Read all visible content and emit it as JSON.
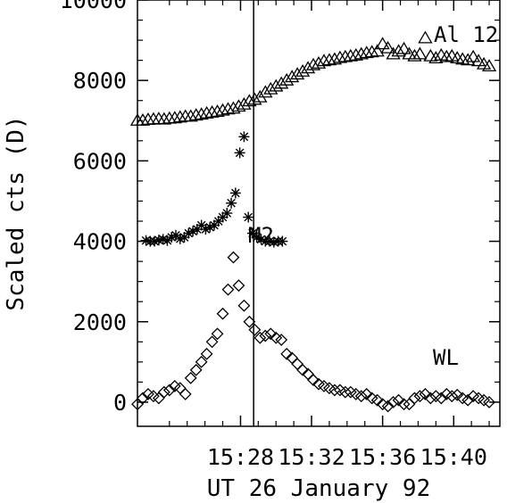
{
  "chart_data": {
    "type": "scatter",
    "xlabel": "UT 26 January 92",
    "ylabel": "Scaled cts (D)",
    "xlim": [
      15.37,
      15.71
    ],
    "ylim": [
      -600,
      10000
    ],
    "x_unit": "hours",
    "x_ticks": [
      {
        "value": 15.4667,
        "label": "15:28"
      },
      {
        "value": 15.5333,
        "label": "15:32"
      },
      {
        "value": 15.6,
        "label": "15:36"
      },
      {
        "value": 15.6667,
        "label": "15:40"
      }
    ],
    "y_ticks": [
      0,
      2000,
      4000,
      6000,
      8000,
      10000
    ],
    "vline_x": 15.479,
    "grid": false,
    "series": [
      {
        "name": "Al 12",
        "marker": "triangle",
        "x": [
          15.37,
          15.375,
          15.38,
          15.385,
          15.39,
          15.395,
          15.4,
          15.405,
          15.41,
          15.415,
          15.42,
          15.425,
          15.43,
          15.435,
          15.44,
          15.445,
          15.45,
          15.455,
          15.46,
          15.465,
          15.47,
          15.475,
          15.48,
          15.485,
          15.49,
          15.495,
          15.5,
          15.505,
          15.51,
          15.515,
          15.52,
          15.525,
          15.53,
          15.535,
          15.54,
          15.545,
          15.55,
          15.555,
          15.56,
          15.565,
          15.57,
          15.575,
          15.58,
          15.585,
          15.59,
          15.595,
          15.6,
          15.605,
          15.61,
          15.615,
          15.62,
          15.625,
          15.63,
          15.635,
          15.64,
          15.645,
          15.65,
          15.655,
          15.66,
          15.665,
          15.67,
          15.675,
          15.68,
          15.685,
          15.69,
          15.695,
          15.7
        ],
        "values": [
          7000,
          7000,
          7020,
          7030,
          7040,
          7030,
          7050,
          7060,
          7080,
          7100,
          7100,
          7130,
          7150,
          7180,
          7200,
          7220,
          7250,
          7280,
          7300,
          7350,
          7400,
          7480,
          7520,
          7580,
          7700,
          7780,
          7850,
          7920,
          8000,
          8080,
          8150,
          8220,
          8300,
          8380,
          8420,
          8480,
          8500,
          8520,
          8560,
          8580,
          8600,
          8620,
          8650,
          8680,
          8700,
          8720,
          8900,
          8800,
          8650,
          8720,
          8780,
          8650,
          8600,
          8650,
          9050,
          8600,
          8550,
          8620,
          8580,
          8600,
          8550,
          8520,
          8500,
          8580,
          8480,
          8400,
          8350
        ]
      },
      {
        "name": "M2",
        "marker": "asterisk",
        "x": [
          15.378,
          15.382,
          15.386,
          15.39,
          15.394,
          15.398,
          15.402,
          15.406,
          15.41,
          15.414,
          15.418,
          15.422,
          15.426,
          15.43,
          15.434,
          15.438,
          15.442,
          15.446,
          15.45,
          15.454,
          15.458,
          15.462,
          15.466,
          15.47,
          15.474,
          15.478,
          15.482,
          15.486,
          15.49,
          15.494,
          15.498,
          15.502,
          15.506
        ],
        "values": [
          4020,
          4000,
          4000,
          4030,
          4050,
          4020,
          4100,
          4150,
          4060,
          4100,
          4200,
          4250,
          4300,
          4400,
          4300,
          4350,
          4400,
          4500,
          4600,
          4700,
          4950,
          5200,
          6200,
          6600,
          4600,
          4200,
          4100,
          4050,
          4000,
          4000,
          3980,
          4000,
          4000
        ]
      },
      {
        "name": "WL",
        "marker": "diamond",
        "x": [
          15.37,
          15.375,
          15.38,
          15.385,
          15.39,
          15.395,
          15.4,
          15.405,
          15.41,
          15.415,
          15.42,
          15.425,
          15.43,
          15.435,
          15.44,
          15.445,
          15.45,
          15.455,
          15.46,
          15.465,
          15.47,
          15.475,
          15.48,
          15.485,
          15.49,
          15.495,
          15.5,
          15.505,
          15.51,
          15.515,
          15.52,
          15.525,
          15.53,
          15.535,
          15.54,
          15.545,
          15.55,
          15.555,
          15.56,
          15.565,
          15.57,
          15.575,
          15.58,
          15.585,
          15.59,
          15.595,
          15.6,
          15.605,
          15.61,
          15.615,
          15.62,
          15.625,
          15.63,
          15.635,
          15.64,
          15.645,
          15.65,
          15.655,
          15.66,
          15.665,
          15.67,
          15.675,
          15.68,
          15.685,
          15.69,
          15.695,
          15.7
        ],
        "values": [
          -50,
          100,
          200,
          150,
          100,
          250,
          300,
          400,
          350,
          200,
          600,
          800,
          1000,
          1200,
          1500,
          1700,
          2200,
          2800,
          3600,
          2900,
          2400,
          2000,
          1800,
          1600,
          1650,
          1700,
          1600,
          1550,
          1200,
          1100,
          950,
          800,
          700,
          550,
          450,
          400,
          350,
          300,
          300,
          250,
          250,
          200,
          150,
          200,
          100,
          50,
          -50,
          -100,
          0,
          50,
          -50,
          -50,
          100,
          150,
          200,
          100,
          150,
          100,
          200,
          150,
          180,
          100,
          50,
          150,
          100,
          50,
          0
        ]
      }
    ],
    "series_labels": [
      "Al 12",
      "M2",
      "WL"
    ]
  }
}
